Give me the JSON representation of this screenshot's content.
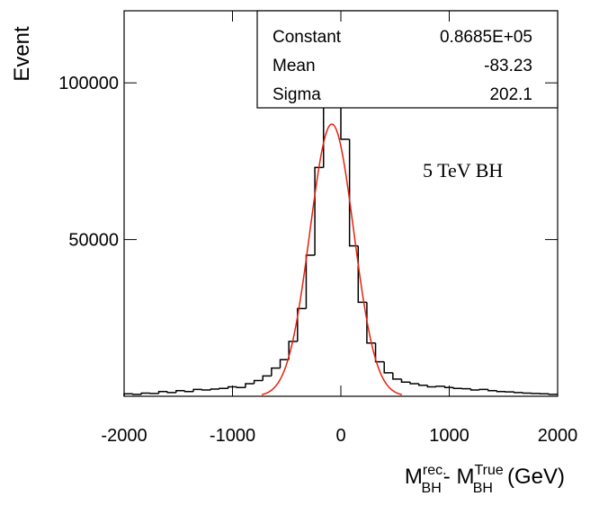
{
  "chart_data": {
    "type": "histogram",
    "ylabel": "Event",
    "xlabel": {
      "m1": "M",
      "sup1": "rec.",
      "sub1": "BH",
      "m2": "- M",
      "sup2": "True",
      "sub2": "BH",
      "unit": "(GeV)"
    },
    "annotation": "5 TeV BH",
    "bins": [
      -2000,
      -1920,
      -1840,
      -1760,
      -1680,
      -1600,
      -1520,
      -1440,
      -1360,
      -1280,
      -1200,
      -1120,
      -1040,
      -960,
      -880,
      -800,
      -720,
      -640,
      -560,
      -480,
      -400,
      -320,
      -240,
      -160,
      -80,
      0,
      80,
      160,
      240,
      320,
      400,
      480,
      560,
      640,
      720,
      800,
      880,
      960,
      1040,
      1120,
      1200,
      1280,
      1360,
      1440,
      1520,
      1600,
      1680,
      1760,
      1840,
      1920,
      2000
    ],
    "values": [
      800,
      600,
      1000,
      900,
      1500,
      1200,
      1800,
      1500,
      2200,
      2000,
      2300,
      2500,
      3000,
      2800,
      4000,
      5000,
      6500,
      9000,
      11700,
      17500,
      28000,
      45000,
      73000,
      110000,
      119000,
      82000,
      48000,
      30000,
      17000,
      11000,
      7500,
      5500,
      4500,
      4000,
      3500,
      3000,
      3200,
      2800,
      2500,
      2400,
      2000,
      2200,
      1800,
      1500,
      1400,
      1200,
      1000,
      900,
      800,
      600
    ],
    "color": "#000000",
    "fit": {
      "color": "#e8200c"
    },
    "stats": {
      "names": [
        "Constant",
        "Mean",
        "Sigma"
      ],
      "values": [
        86850,
        -83.23,
        202.1
      ],
      "value_labels": [
        "0.8685E+05",
        "-83.23",
        "202.1"
      ]
    },
    "xlim": [
      -2000,
      2000
    ],
    "ylim": [
      0,
      123000
    ],
    "xticks": [
      -2000,
      -1000,
      0,
      1000,
      2000
    ],
    "yticks": [
      50000,
      100000
    ]
  }
}
